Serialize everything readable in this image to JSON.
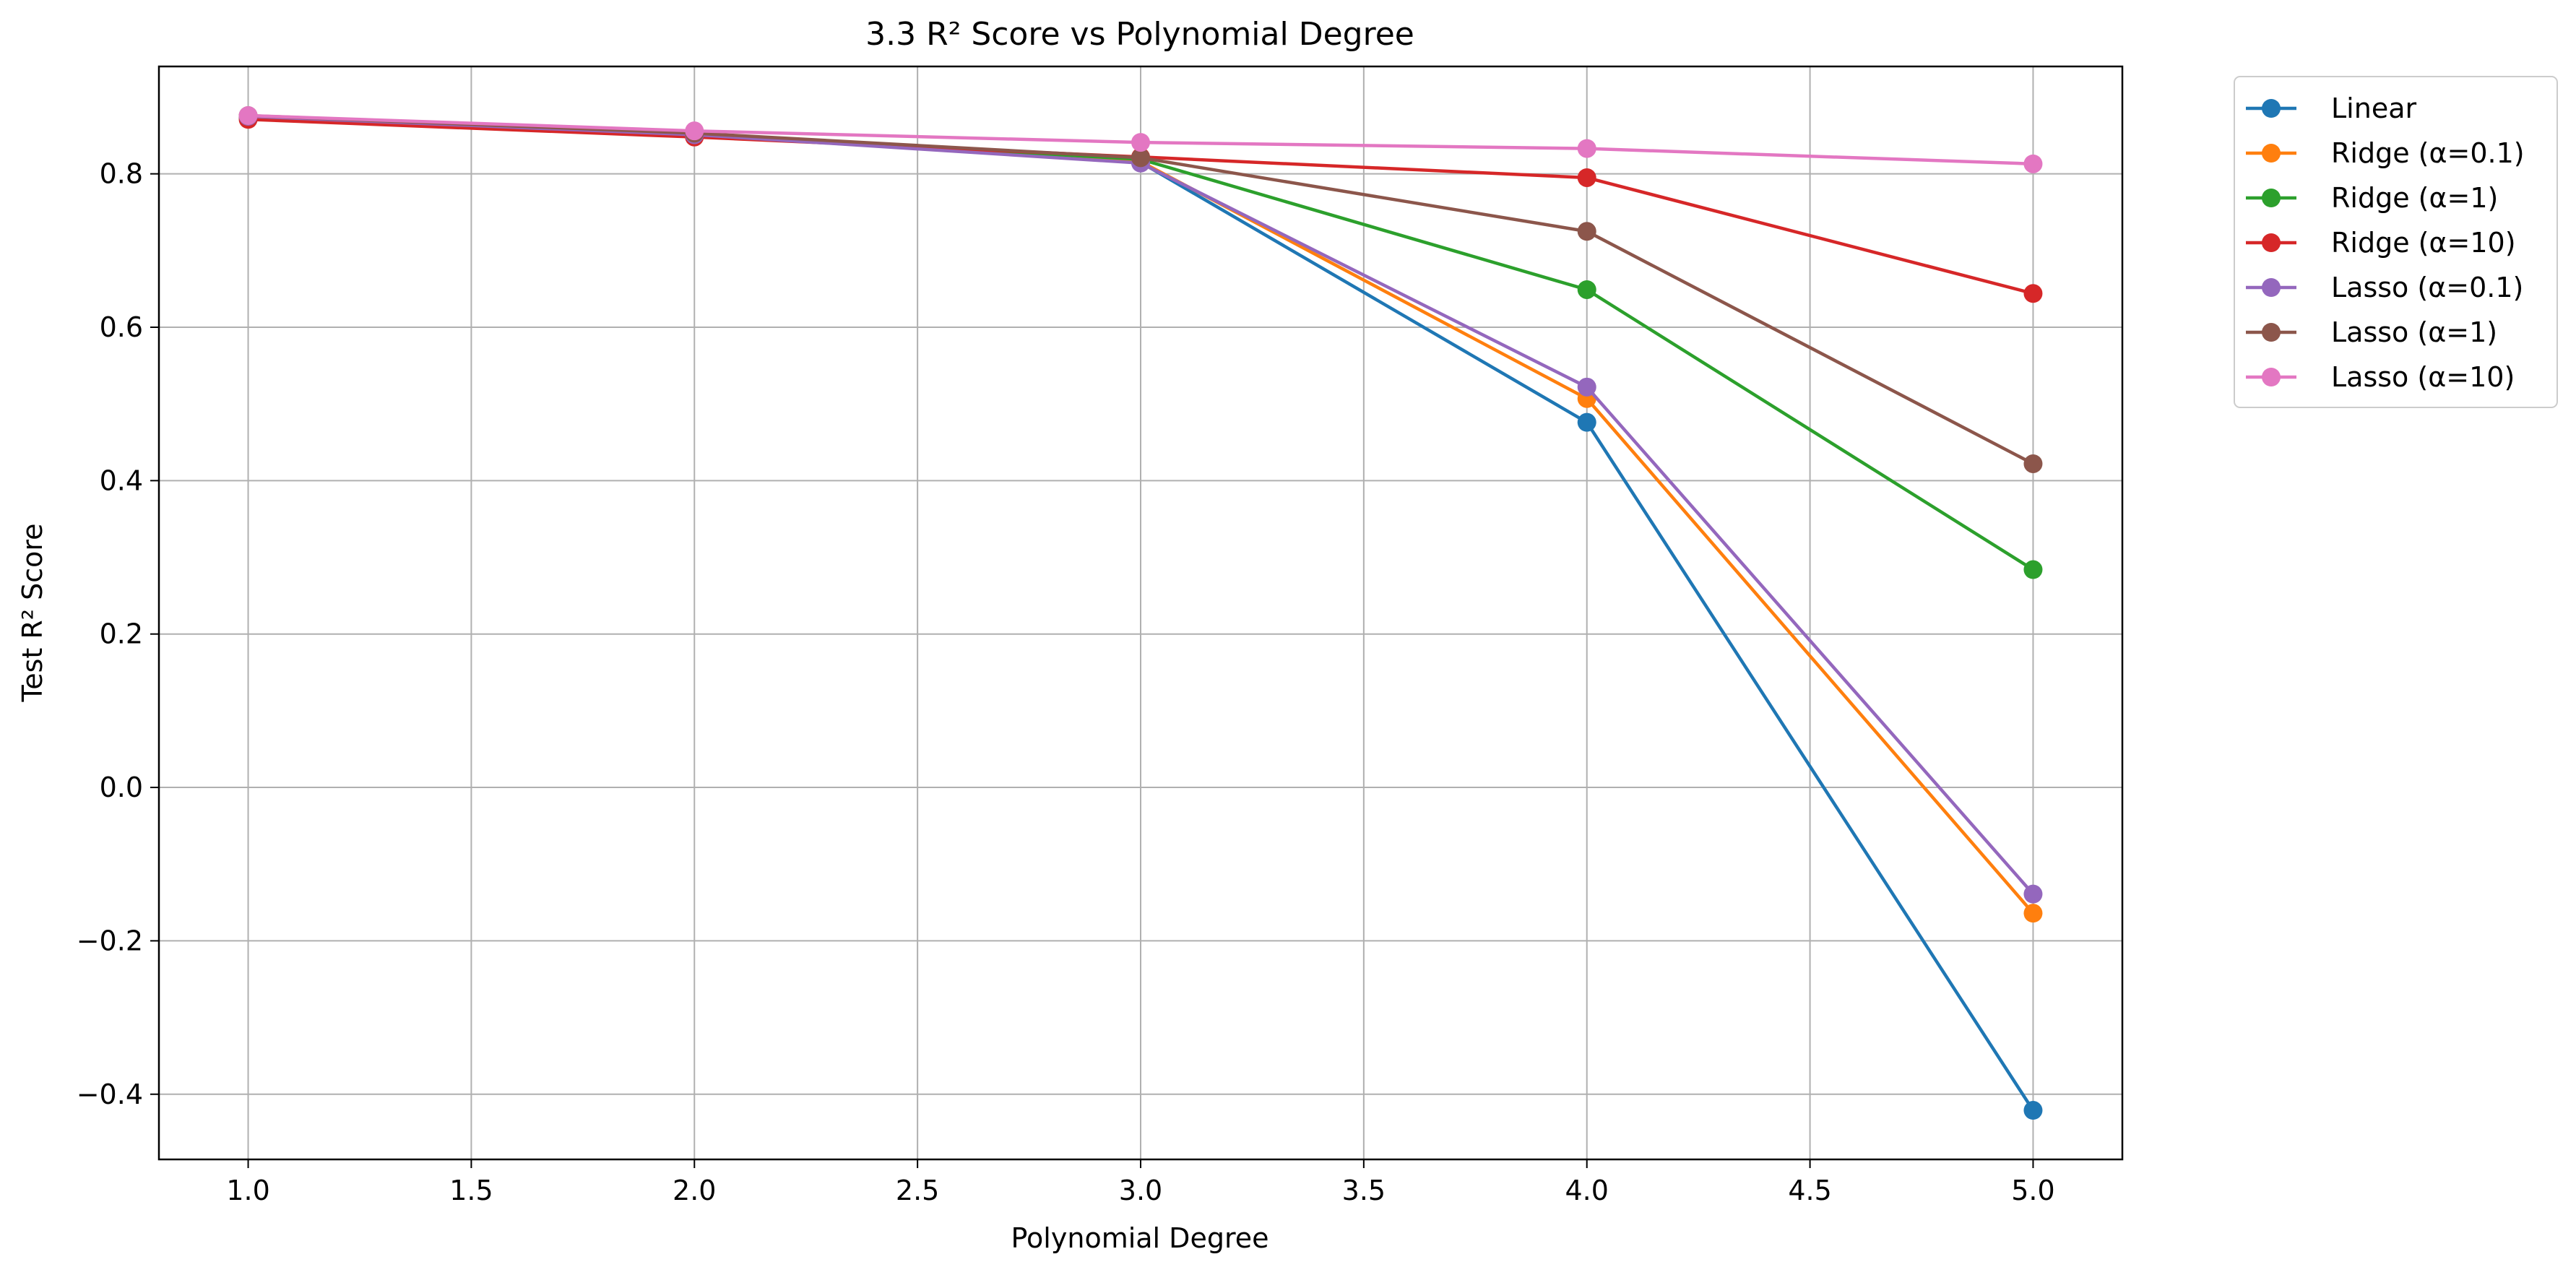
{
  "chart_data": {
    "type": "line",
    "title": "3.3 R² Score vs Polynomial Degree",
    "xlabel": "Polynomial Degree",
    "ylabel": "Test R² Score",
    "x": [
      1,
      2,
      3,
      4,
      5
    ],
    "xlim": [
      0.8,
      5.2
    ],
    "ylim": [
      -0.485,
      0.94
    ],
    "xticks": [
      1.0,
      1.5,
      2.0,
      2.5,
      3.0,
      3.5,
      4.0,
      4.5,
      5.0
    ],
    "xtick_labels": [
      "1.0",
      "1.5",
      "2.0",
      "2.5",
      "3.0",
      "3.5",
      "4.0",
      "4.5",
      "5.0"
    ],
    "yticks": [
      -0.4,
      -0.2,
      0.0,
      0.2,
      0.4,
      0.6,
      0.8
    ],
    "ytick_labels": [
      "−0.4",
      "−0.2",
      "0.0",
      "0.2",
      "0.4",
      "0.6",
      "0.8"
    ],
    "grid": true,
    "legend_position": "outside-top-right",
    "marker": "circle",
    "series": [
      {
        "name": "Linear",
        "color": "#1f77b4",
        "values": [
          0.875,
          0.851,
          0.815,
          0.476,
          -0.421
        ]
      },
      {
        "name": "Ridge (α=0.1)",
        "color": "#ff7f0e",
        "values": [
          0.875,
          0.851,
          0.816,
          0.507,
          -0.164
        ]
      },
      {
        "name": "Ridge (α=1)",
        "color": "#2ca02c",
        "values": [
          0.874,
          0.851,
          0.819,
          0.649,
          0.284
        ]
      },
      {
        "name": "Ridge (α=10)",
        "color": "#d62728",
        "values": [
          0.871,
          0.848,
          0.822,
          0.795,
          0.644
        ]
      },
      {
        "name": "Lasso (α=0.1)",
        "color": "#9467bd",
        "values": [
          0.875,
          0.851,
          0.814,
          0.522,
          -0.139
        ]
      },
      {
        "name": "Lasso (α=1)",
        "color": "#8c564b",
        "values": [
          0.876,
          0.853,
          0.821,
          0.725,
          0.422
        ]
      },
      {
        "name": "Lasso (α=10)",
        "color": "#e377c2",
        "values": [
          0.876,
          0.856,
          0.841,
          0.833,
          0.813
        ]
      }
    ]
  }
}
